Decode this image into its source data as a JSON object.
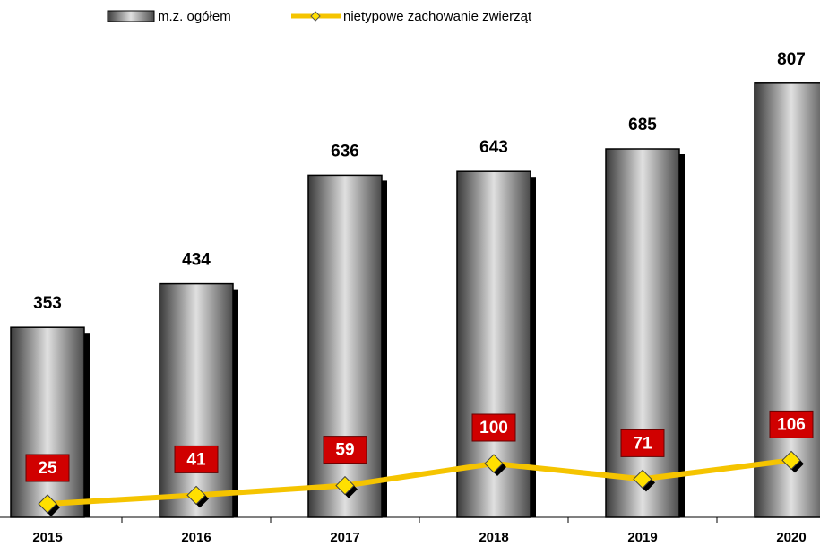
{
  "chart_data": {
    "type": "bar",
    "categories": [
      "2015",
      "2016",
      "2017",
      "2018",
      "2019",
      "2020"
    ],
    "series": [
      {
        "name": "m.z. ogółem",
        "type": "bar",
        "color": "#8c8c8c",
        "values": [
          353,
          434,
          636,
          643,
          685,
          807
        ]
      },
      {
        "name": "nietypowe zachowanie zwierząt",
        "type": "line",
        "color": "#f5c400",
        "values": [
          25,
          41,
          59,
          100,
          71,
          106
        ]
      }
    ],
    "ylim": [
      0,
      900
    ],
    "legend": "top",
    "grid": false
  }
}
